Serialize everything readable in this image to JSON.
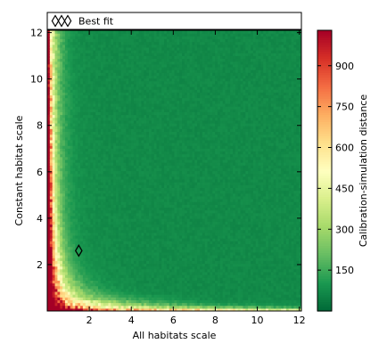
{
  "chart_data": {
    "type": "heatmap",
    "title": "",
    "xlabel": "All habitats scale",
    "ylabel": "Constant habitat scale",
    "xlim": [
      0.0,
      12.1
    ],
    "ylim": [
      0.0,
      12.1
    ],
    "x_ticks": [
      2,
      4,
      6,
      8,
      10,
      12
    ],
    "y_ticks": [
      2,
      4,
      6,
      8,
      10,
      12
    ],
    "colorbar": {
      "label": "Calibration-simulation distance",
      "range": [
        0,
        1030
      ],
      "ticks": [
        150,
        300,
        450,
        600,
        750,
        900
      ],
      "colormap": "RdYlGn_r",
      "colors": [
        "#006837",
        "#1a9850",
        "#66bd63",
        "#a6d96a",
        "#d9ef8b",
        "#ffffbf",
        "#fee08b",
        "#fdae61",
        "#f46d43",
        "#d73027",
        "#a50026"
      ]
    },
    "best_fit": {
      "x": 1.5,
      "y": 2.6,
      "marker": "diamond"
    },
    "legend": {
      "position": "top",
      "entries": [
        {
          "label": "Best fit",
          "marker": "diamond"
        }
      ]
    },
    "value_model": {
      "note": "distance is high near the axes and falls rapidly toward a uniform low value",
      "background": 60,
      "edge_x_peak": 980,
      "edge_y_peak": 900,
      "corner_peak": 1000
    }
  }
}
